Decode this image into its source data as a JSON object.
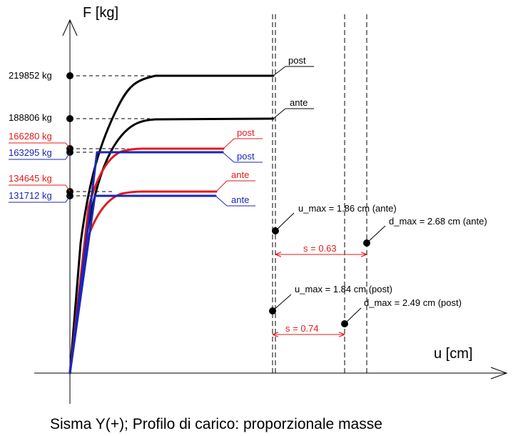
{
  "chart_data": {
    "type": "line",
    "title": "",
    "caption": "Sisma Y(+); Profilo di carico: proporzionale masse",
    "xlabel": "u [cm]",
    "ylabel": "F [kg]",
    "grid": false,
    "colors": {
      "black": "#000000",
      "red": "#e21b1b",
      "blue": "#1b25b8"
    },
    "series": [
      {
        "name": "post",
        "color": "#000000",
        "points": [
          [
            0,
            0
          ],
          [
            0.2,
            55000
          ],
          [
            0.35,
            130000
          ],
          [
            0.55,
            180000
          ],
          [
            0.75,
            212000
          ],
          [
            1.05,
            219000
          ],
          [
            1.3,
            219852
          ],
          [
            3.1,
            219852
          ]
        ]
      },
      {
        "name": "ante",
        "color": "#000000",
        "points": [
          [
            0,
            0
          ],
          [
            0.2,
            50000
          ],
          [
            0.4,
            120000
          ],
          [
            0.6,
            160000
          ],
          [
            0.85,
            182000
          ],
          [
            1.15,
            188500
          ],
          [
            3.1,
            188806
          ]
        ]
      },
      {
        "name": "post",
        "color": "#e21b1b",
        "points": [
          [
            0,
            0
          ],
          [
            0.25,
            90000
          ],
          [
            0.45,
            140000
          ],
          [
            0.7,
            160000
          ],
          [
            1.0,
            166000
          ],
          [
            3.0,
            166280
          ]
        ]
      },
      {
        "name": "ante",
        "color": "#e21b1b",
        "points": [
          [
            0,
            0
          ],
          [
            0.25,
            80000
          ],
          [
            0.5,
            115000
          ],
          [
            0.75,
            130000
          ],
          [
            1.1,
            133500
          ],
          [
            3.0,
            134645
          ]
        ]
      },
      {
        "name": "post",
        "color": "#1b25b8",
        "points": [
          [
            0,
            0
          ],
          [
            0.4,
            163295
          ],
          [
            2.8,
            163295
          ]
        ]
      },
      {
        "name": "ante",
        "color": "#1b25b8",
        "points": [
          [
            0,
            0
          ],
          [
            0.4,
            131712
          ],
          [
            2.8,
            131712
          ]
        ]
      }
    ],
    "value_labels": [
      {
        "text": "219852 kg",
        "value": 219852,
        "color": "#000000"
      },
      {
        "text": "188806 kg",
        "value": 188806,
        "color": "#000000"
      },
      {
        "text": "166280 kg",
        "value": 166280,
        "color": "#e21b1b"
      },
      {
        "text": "163295 kg",
        "value": 163295,
        "color": "#1b25b8"
      },
      {
        "text": "134645 kg",
        "value": 134645,
        "color": "#e21b1b"
      },
      {
        "text": "131712 kg",
        "value": 131712,
        "color": "#1b25b8"
      }
    ],
    "vertical_lines": [
      3.08,
      3.12,
      4.2,
      4.55
    ],
    "annotations": [
      {
        "text": "u_max = 1.86 cm (ante)",
        "u": 1.86
      },
      {
        "text": "d_max = 2.68 cm (ante)",
        "u": 2.68
      },
      {
        "text": "s = 0.63",
        "value": 0.63
      },
      {
        "text": "u_max = 1.84 cm (post)",
        "u": 1.84
      },
      {
        "text": "d_max = 2.49 cm (post)",
        "u": 2.49
      },
      {
        "text": "s = 0.74",
        "value": 0.74
      }
    ]
  }
}
